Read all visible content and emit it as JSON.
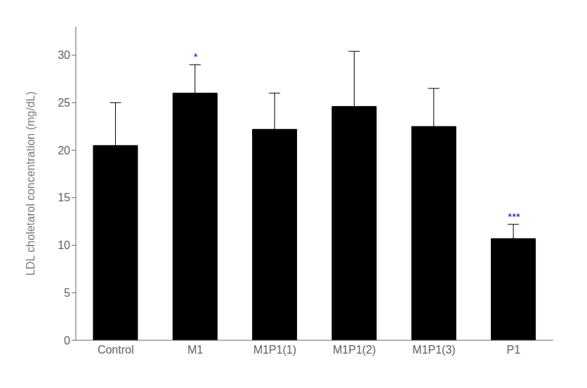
{
  "chart_data": {
    "type": "bar",
    "categories": [
      "Control",
      "M1",
      "M1P1(1)",
      "M1P1(2)",
      "M1P1(3)",
      "P1"
    ],
    "values": [
      20.5,
      26.0,
      22.2,
      24.6,
      22.5,
      10.7
    ],
    "errors": [
      4.5,
      3.0,
      3.8,
      5.8,
      4.0,
      1.5
    ],
    "color": "#000000",
    "ylabel": "LDL choletarol concentration (mg/dL)",
    "ylim": [
      0,
      33
    ],
    "yticks": [
      0,
      5,
      10,
      15,
      20,
      25,
      30
    ],
    "grid": false,
    "annotations": [
      {
        "text": "*",
        "category": "M1",
        "color": "#0000cc"
      },
      {
        "text": "***",
        "category": "P1",
        "color": "#0000cc"
      }
    ]
  }
}
